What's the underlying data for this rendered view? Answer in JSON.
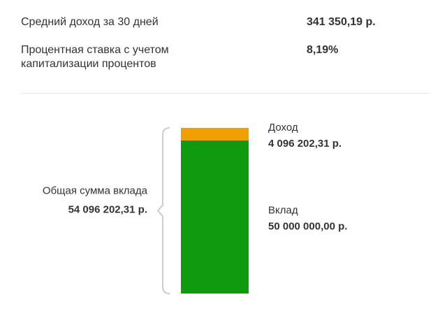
{
  "summary": {
    "rows": [
      {
        "label": "Средний доход за 30 дней",
        "value": "341 350,19 р."
      },
      {
        "label": "Процентная ставка с учетом капитализации процентов",
        "value": "8,19%"
      }
    ]
  },
  "chart_data": {
    "type": "stacked-bar",
    "total": {
      "label": "Общая сумма вклада",
      "value": 54096202.31,
      "value_label": "54 096 202,31 р."
    },
    "series": [
      {
        "name": "Вклад",
        "color": "#109a10",
        "values": [
          50000000
        ],
        "value_labels": [
          "50 000 000,00 р."
        ]
      },
      {
        "name": "Доход",
        "color": "#f0a000",
        "values": [
          4096202.31
        ],
        "value_labels": [
          "4 096 202,31 р."
        ]
      }
    ]
  }
}
